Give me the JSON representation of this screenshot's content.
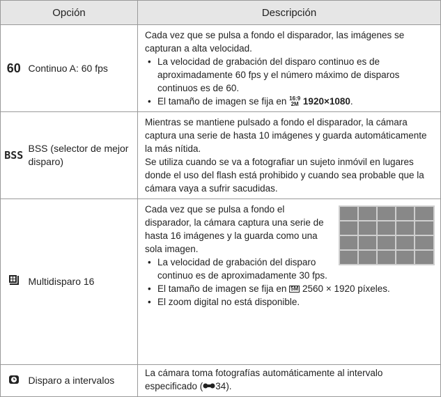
{
  "header": {
    "option": "Opción",
    "description": "Descripción"
  },
  "rows": [
    {
      "icon": "60",
      "option": "Continuo A: 60 fps",
      "paragraphs": [
        "Cada vez que se pulsa a fondo el disparador, las imágenes se capturan a alta velocidad."
      ],
      "bullets": [
        "La velocidad de grabación del disparo continuo es de aproximadamente 60 fps y el número máximo de disparos continuos es de 60.",
        {
          "text": "El tamaño de imagen se fija en",
          "icon": [
            "16:9",
            "2M"
          ],
          "value": "1920×1080",
          "end": "."
        }
      ]
    },
    {
      "icon": "BSS",
      "option": "BSS (selector de mejor disparo)",
      "paragraphs": [
        "Mientras se mantiene pulsado a fondo el disparador, la cámara captura una serie de hasta 10 imágenes y guarda automáticamente la más nítida.",
        "Se utiliza cuando se va a fotografiar un sujeto inmóvil en lugares donde el uso del flash está prohibido y cuando sea probable que la cámara vaya a sufrir sacudidas."
      ]
    },
    {
      "option": "Multidisparo 16",
      "paragraphs": [
        "Cada vez que se pulsa a fondo el disparador, la cámara captura una serie de hasta 16 imágenes y la guarda como una sola imagen."
      ],
      "bullets": [
        "La velocidad de grabación del disparo continuo es de aproximadamente 30 fps.",
        {
          "text": "El tamaño de imagen se fija en",
          "icon": "5M",
          "value": "2560 × 1920 píxeles."
        },
        "El zoom digital no está disponible."
      ]
    },
    {
      "option": "Disparo a intervalos",
      "paragraphs": [
        {
          "text": "La cámara toma fotografías automáticamente al intervalo especificado (",
          "end": "34)."
        }
      ]
    }
  ]
}
